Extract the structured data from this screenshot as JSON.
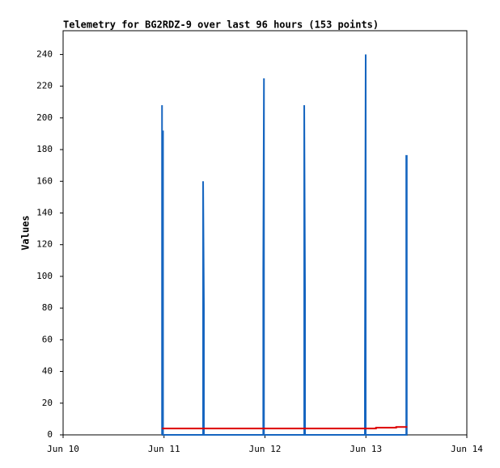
{
  "chart_data": {
    "type": "line",
    "title": "Telemetry for BG2RDZ-9 over last 96 hours (153 points)",
    "ylabel": "Values",
    "xlim": [
      10,
      14
    ],
    "xticks": [
      {
        "value": 10,
        "label": "Jun 10"
      },
      {
        "value": 11,
        "label": "Jun 11"
      },
      {
        "value": 12,
        "label": "Jun 12"
      },
      {
        "value": 13,
        "label": "Jun 13"
      },
      {
        "value": 14,
        "label": "Jun 14"
      }
    ],
    "ylim": [
      0,
      255
    ],
    "yticks": [
      0,
      20,
      40,
      60,
      80,
      100,
      120,
      140,
      160,
      180,
      200,
      220,
      240
    ],
    "grid": false,
    "series": [
      {
        "color": "#000000",
        "x": [
          10.98,
          13.41
        ],
        "values": [
          0,
          0
        ]
      },
      {
        "color": "#1565c0",
        "x": [
          10.98,
          10.98,
          10.98,
          10.99,
          10.99,
          11.387,
          11.387,
          11.395,
          11.395,
          11.983,
          11.983,
          11.99,
          11.99,
          12.389,
          12.389,
          12.397,
          12.397,
          12.99,
          12.99,
          12.998,
          12.998,
          13.4,
          13.4,
          13.405,
          13.405
        ],
        "values": [
          0,
          208,
          160,
          192,
          0,
          0,
          160,
          80,
          0,
          0,
          104,
          225,
          0,
          0,
          208,
          88,
          0,
          0,
          32,
          240,
          0,
          0,
          176,
          176,
          0
        ]
      },
      {
        "color": "#dd0000",
        "x": [
          10.98,
          13.1,
          13.1,
          13.3,
          13.3,
          13.41
        ],
        "values": [
          4,
          4,
          4.5,
          4.5,
          5,
          5
        ]
      }
    ]
  }
}
